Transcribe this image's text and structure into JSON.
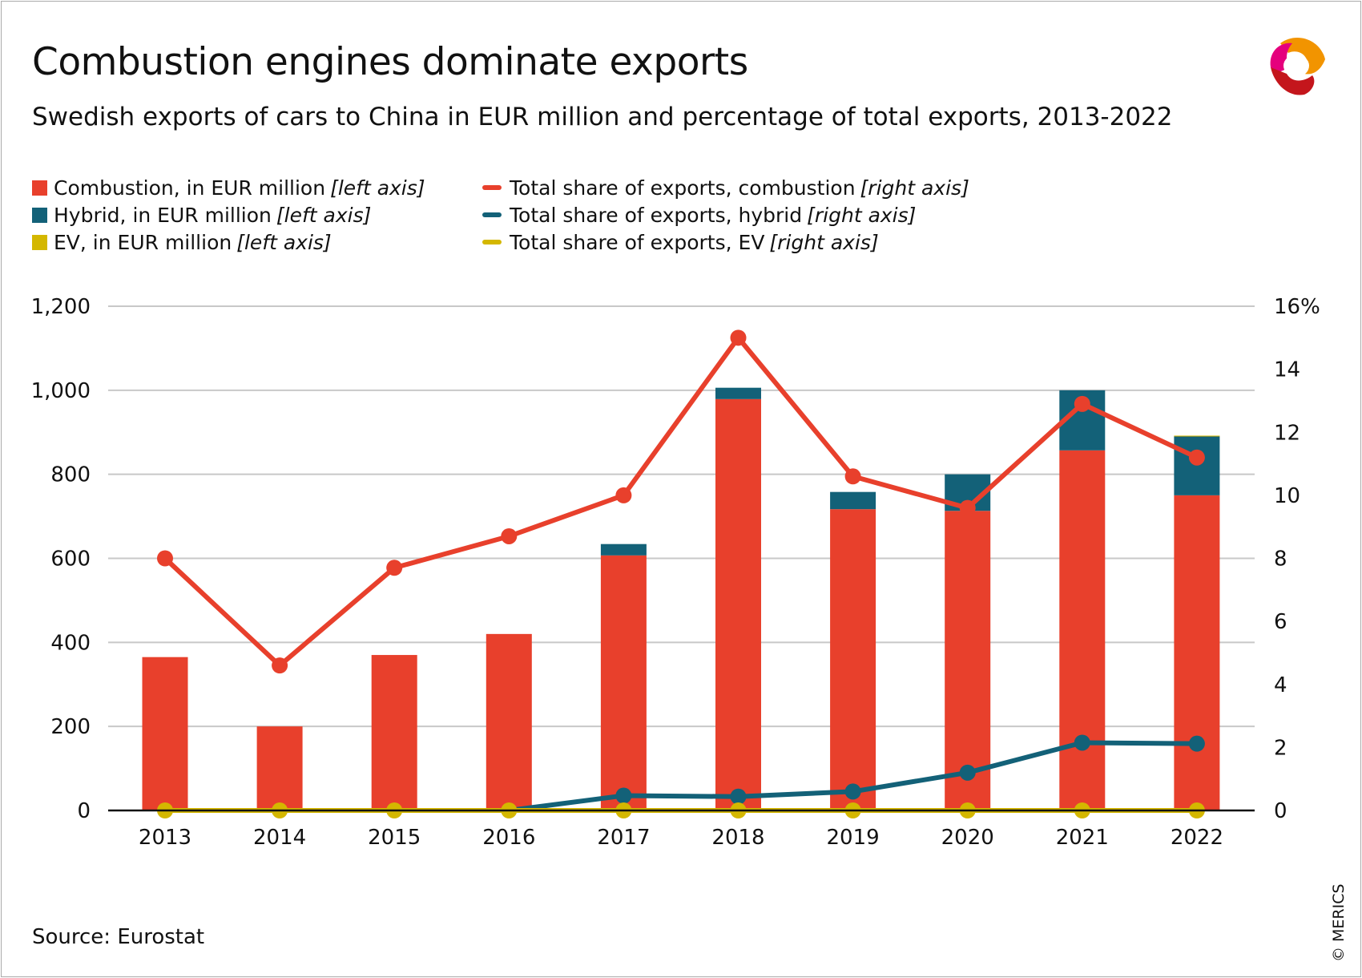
{
  "title": "Combustion engines dominate exports",
  "subtitle": "Swedish exports of cars to China in EUR million and percentage of total exports, 2013-2022",
  "source": "Source: Eurostat",
  "copyright": "© MERICS",
  "logo": "MERICS",
  "colors": {
    "combustion": "#e8402c",
    "hybrid": "#136178",
    "ev": "#d4b700",
    "grid": "#c8c8c8"
  },
  "legend": [
    {
      "label": "Combustion, in EUR million",
      "note": "[left axis]",
      "kind": "bar",
      "color": "#e8402c"
    },
    {
      "label": "Hybrid, in EUR million",
      "note": "[left axis]",
      "kind": "bar",
      "color": "#136178"
    },
    {
      "label": "EV, in EUR million",
      "note": "[left axis]",
      "kind": "bar",
      "color": "#d4b700"
    },
    {
      "label": "Total share of exports, combustion",
      "note": "[right axis]",
      "kind": "line",
      "color": "#e8402c"
    },
    {
      "label": "Total share of exports, hybrid",
      "note": "[right axis]",
      "kind": "line",
      "color": "#136178"
    },
    {
      "label": "Total share of exports, EV",
      "note": "[right axis]",
      "kind": "line",
      "color": "#d4b700"
    }
  ],
  "chart_data": {
    "type": "bar",
    "stacked": true,
    "categories": [
      "2013",
      "2014",
      "2015",
      "2016",
      "2017",
      "2018",
      "2019",
      "2020",
      "2021",
      "2022"
    ],
    "left_axis": {
      "ylim": [
        0,
        1200
      ],
      "ticks": [
        "0",
        "200",
        "400",
        "600",
        "800",
        "1,000",
        "1,200"
      ]
    },
    "right_axis": {
      "ylim": [
        0,
        16
      ],
      "ticks": [
        "0",
        "2",
        "4",
        "6",
        "8",
        "10",
        "12",
        "14",
        "16%"
      ]
    },
    "grid": true,
    "legend_position": "top-left",
    "series": [
      {
        "name": "Combustion, in EUR million",
        "type": "bar",
        "axis": "left",
        "values": [
          365,
          200,
          370,
          420,
          607,
          979,
          717,
          713,
          857,
          750
        ]
      },
      {
        "name": "Hybrid, in EUR million",
        "type": "bar",
        "axis": "left",
        "values": [
          0,
          0,
          0,
          0,
          27,
          27,
          41,
          87,
          143,
          140
        ]
      },
      {
        "name": "EV, in EUR million",
        "type": "bar",
        "axis": "left",
        "values": [
          0,
          0,
          0,
          0,
          0,
          0,
          0,
          0,
          0,
          2
        ]
      },
      {
        "name": "Total share of exports, combustion",
        "type": "line",
        "axis": "right",
        "values": [
          8.0,
          4.6,
          7.7,
          8.7,
          10.0,
          15.0,
          10.6,
          9.6,
          12.9,
          11.2
        ]
      },
      {
        "name": "Total share of exports, hybrid",
        "type": "line",
        "axis": "right",
        "values": [
          null,
          null,
          null,
          0,
          0.47,
          0.44,
          0.6,
          1.2,
          2.15,
          2.12
        ]
      },
      {
        "name": "Total share of exports, EV",
        "type": "line",
        "axis": "right",
        "values": [
          0,
          0,
          0,
          0,
          0,
          0,
          0,
          0,
          0,
          0
        ]
      }
    ]
  }
}
